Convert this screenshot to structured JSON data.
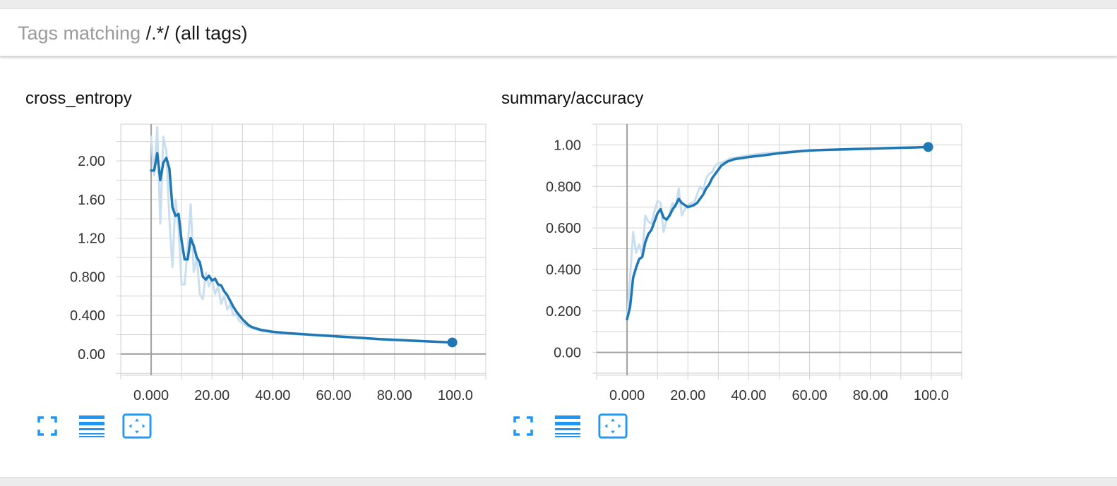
{
  "filter": {
    "prefix": "Tags matching ",
    "pattern": "/.*/",
    "suffix": "(all tags)"
  },
  "colors": {
    "line": "#1f77b4",
    "line_raw": "#c9dff0",
    "icon": "#2196f3",
    "grid": "#d2d2d2",
    "axis": "#a0a0a0"
  },
  "cards": [
    {
      "title": "cross_entropy",
      "toolbar": {
        "expand_icon": "expand-icon",
        "log_scale_icon": "lines-icon",
        "fit_domain_icon": "fit-domain-icon"
      }
    },
    {
      "title": "summary/accuracy",
      "toolbar": {
        "expand_icon": "expand-icon",
        "log_scale_icon": "lines-icon",
        "fit_domain_icon": "fit-domain-icon"
      }
    }
  ],
  "chart_data": [
    {
      "type": "line",
      "title": "cross_entropy",
      "xlabel": "",
      "ylabel": "",
      "xlim": [
        -10,
        110
      ],
      "ylim": [
        -0.22,
        2.38
      ],
      "xticks": [
        "0.000",
        "20.00",
        "40.00",
        "60.00",
        "80.00",
        "100.0"
      ],
      "xtick_values": [
        0,
        20,
        40,
        60,
        80,
        100
      ],
      "yticks": [
        "0.00",
        "0.400",
        "0.800",
        "1.20",
        "1.60",
        "2.00"
      ],
      "ytick_values": [
        0,
        0.4,
        0.8,
        1.2,
        1.6,
        2.0
      ],
      "grid": true,
      "series": [
        {
          "x": [
            0,
            1,
            2,
            3,
            4,
            5,
            6,
            7,
            8,
            9,
            10,
            11,
            12,
            13,
            14,
            15,
            16,
            17,
            18,
            19,
            20,
            21,
            22,
            23,
            24,
            25,
            26,
            27,
            28,
            29,
            30,
            32,
            34,
            36,
            38,
            40,
            45,
            50,
            60,
            70,
            80,
            90,
            99
          ],
          "y": [
            2.25,
            1.85,
            2.35,
            1.35,
            2.25,
            2.1,
            1.4,
            0.9,
            1.6,
            1.3,
            0.72,
            0.72,
            1.1,
            1.55,
            0.85,
            1.0,
            0.62,
            0.57,
            0.84,
            0.7,
            0.78,
            0.62,
            0.7,
            0.52,
            0.6,
            0.46,
            0.52,
            0.4,
            0.42,
            0.34,
            0.32,
            0.28,
            0.26,
            0.24,
            0.23,
            0.22,
            0.21,
            0.2,
            0.18,
            0.16,
            0.14,
            0.13,
            0.12
          ]
        },
        {
          "x": [
            0,
            1,
            2,
            3,
            4,
            5,
            6,
            7,
            8,
            9,
            10,
            11,
            12,
            13,
            14,
            15,
            16,
            17,
            18,
            19,
            20,
            21,
            22,
            23,
            24,
            25,
            26,
            27,
            28,
            29,
            30,
            31,
            32,
            33,
            34,
            35,
            36,
            38,
            40,
            45,
            50,
            55,
            60,
            65,
            70,
            75,
            80,
            85,
            90,
            95,
            99
          ],
          "y": [
            1.9,
            1.9,
            2.08,
            1.8,
            1.98,
            2.03,
            1.92,
            1.52,
            1.43,
            1.45,
            1.17,
            0.98,
            0.98,
            1.2,
            1.12,
            1.0,
            0.95,
            0.8,
            0.77,
            0.81,
            0.76,
            0.78,
            0.72,
            0.71,
            0.65,
            0.61,
            0.55,
            0.49,
            0.44,
            0.4,
            0.36,
            0.33,
            0.3,
            0.28,
            0.27,
            0.26,
            0.25,
            0.24,
            0.23,
            0.215,
            0.205,
            0.195,
            0.185,
            0.175,
            0.165,
            0.155,
            0.147,
            0.14,
            0.132,
            0.125,
            0.12
          ]
        }
      ]
    },
    {
      "type": "line",
      "title": "summary/accuracy",
      "xlabel": "",
      "ylabel": "",
      "xlim": [
        -10,
        110
      ],
      "ylim": [
        -0.11,
        1.1
      ],
      "xticks": [
        "0.000",
        "20.00",
        "40.00",
        "60.00",
        "80.00",
        "100.0"
      ],
      "xtick_values": [
        0,
        20,
        40,
        60,
        80,
        100
      ],
      "yticks": [
        "0.00",
        "0.200",
        "0.400",
        "0.600",
        "0.800",
        "1.00"
      ],
      "ytick_values": [
        0,
        0.2,
        0.4,
        0.6,
        0.8,
        1.0
      ],
      "grid": true,
      "series": [
        {
          "x": [
            0,
            1,
            2,
            3,
            4,
            5,
            6,
            7,
            8,
            9,
            10,
            11,
            12,
            13,
            14,
            15,
            16,
            17,
            18,
            19,
            20,
            21,
            22,
            23,
            24,
            25,
            26,
            27,
            28,
            29,
            30,
            32,
            34,
            36,
            38,
            40,
            45,
            50,
            60,
            70,
            80,
            90,
            99
          ],
          "y": [
            0.16,
            0.36,
            0.58,
            0.48,
            0.52,
            0.47,
            0.66,
            0.63,
            0.62,
            0.68,
            0.73,
            0.72,
            0.58,
            0.64,
            0.67,
            0.72,
            0.7,
            0.79,
            0.66,
            0.69,
            0.71,
            0.72,
            0.72,
            0.76,
            0.8,
            0.78,
            0.84,
            0.86,
            0.87,
            0.9,
            0.91,
            0.92,
            0.935,
            0.94,
            0.945,
            0.95,
            0.96,
            0.965,
            0.975,
            0.975,
            0.98,
            0.985,
            0.99
          ]
        },
        {
          "x": [
            0,
            1,
            2,
            3,
            4,
            5,
            6,
            7,
            8,
            9,
            10,
            11,
            12,
            13,
            14,
            15,
            16,
            17,
            18,
            19,
            20,
            21,
            22,
            23,
            24,
            25,
            26,
            27,
            28,
            29,
            30,
            31,
            32,
            33,
            34,
            35,
            36,
            38,
            40,
            45,
            50,
            55,
            60,
            65,
            70,
            75,
            80,
            85,
            90,
            95,
            99
          ],
          "y": [
            0.16,
            0.22,
            0.36,
            0.41,
            0.45,
            0.46,
            0.53,
            0.57,
            0.59,
            0.63,
            0.67,
            0.69,
            0.65,
            0.64,
            0.66,
            0.69,
            0.71,
            0.74,
            0.72,
            0.71,
            0.7,
            0.705,
            0.71,
            0.72,
            0.74,
            0.76,
            0.79,
            0.81,
            0.84,
            0.86,
            0.88,
            0.9,
            0.91,
            0.92,
            0.925,
            0.93,
            0.933,
            0.937,
            0.942,
            0.95,
            0.96,
            0.967,
            0.973,
            0.976,
            0.978,
            0.98,
            0.982,
            0.984,
            0.986,
            0.988,
            0.99
          ]
        }
      ]
    }
  ]
}
